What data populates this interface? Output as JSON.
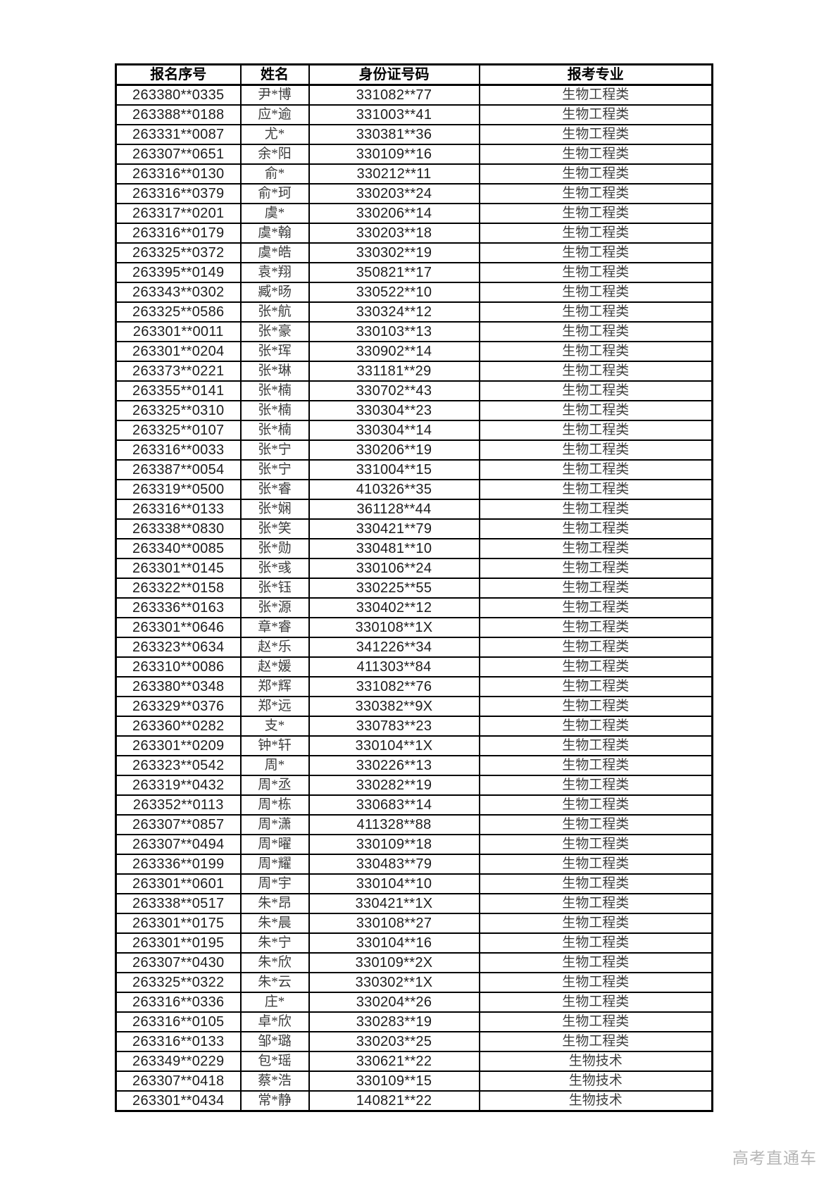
{
  "watermark": {
    "text": "高考直通车",
    "color": "#b6b6b6"
  },
  "table": {
    "headers": [
      "报名序号",
      "姓名",
      "身份证号码",
      "报考专业"
    ],
    "rows": [
      [
        "263380**0335",
        "尹*博",
        "331082**77",
        "生物工程类"
      ],
      [
        "263388**0188",
        "应*逾",
        "331003**41",
        "生物工程类"
      ],
      [
        "263331**0087",
        "尤*",
        "330381**36",
        "生物工程类"
      ],
      [
        "263307**0651",
        "余*阳",
        "330109**16",
        "生物工程类"
      ],
      [
        "263316**0130",
        "俞*",
        "330212**11",
        "生物工程类"
      ],
      [
        "263316**0379",
        "俞*珂",
        "330203**24",
        "生物工程类"
      ],
      [
        "263317**0201",
        "虞*",
        "330206**14",
        "生物工程类"
      ],
      [
        "263316**0179",
        "虞*翰",
        "330203**18",
        "生物工程类"
      ],
      [
        "263325**0372",
        "虞*皓",
        "330302**19",
        "生物工程类"
      ],
      [
        "263395**0149",
        "袁*翔",
        "350821**17",
        "生物工程类"
      ],
      [
        "263343**0302",
        "臧*旸",
        "330522**10",
        "生物工程类"
      ],
      [
        "263325**0586",
        "张*航",
        "330324**12",
        "生物工程类"
      ],
      [
        "263301**0011",
        "张*豪",
        "330103**13",
        "生物工程类"
      ],
      [
        "263301**0204",
        "张*珲",
        "330902**14",
        "生物工程类"
      ],
      [
        "263373**0221",
        "张*琳",
        "331181**29",
        "生物工程类"
      ],
      [
        "263355**0141",
        "张*楠",
        "330702**43",
        "生物工程类"
      ],
      [
        "263325**0310",
        "张*楠",
        "330304**23",
        "生物工程类"
      ],
      [
        "263325**0107",
        "张*楠",
        "330304**14",
        "生物工程类"
      ],
      [
        "263316**0033",
        "张*宁",
        "330206**19",
        "生物工程类"
      ],
      [
        "263387**0054",
        "张*宁",
        "331004**15",
        "生物工程类"
      ],
      [
        "263319**0500",
        "张*睿",
        "410326**35",
        "生物工程类"
      ],
      [
        "263316**0133",
        "张*娴",
        "361128**44",
        "生物工程类"
      ],
      [
        "263338**0830",
        "张*笑",
        "330421**79",
        "生物工程类"
      ],
      [
        "263340**0085",
        "张*勋",
        "330481**10",
        "生物工程类"
      ],
      [
        "263301**0145",
        "张*彧",
        "330106**24",
        "生物工程类"
      ],
      [
        "263322**0158",
        "张*钰",
        "330225**55",
        "生物工程类"
      ],
      [
        "263336**0163",
        "张*源",
        "330402**12",
        "生物工程类"
      ],
      [
        "263301**0646",
        "章*睿",
        "330108**1X",
        "生物工程类"
      ],
      [
        "263323**0634",
        "赵*乐",
        "341226**34",
        "生物工程类"
      ],
      [
        "263310**0086",
        "赵*媛",
        "411303**84",
        "生物工程类"
      ],
      [
        "263380**0348",
        "郑*辉",
        "331082**76",
        "生物工程类"
      ],
      [
        "263329**0376",
        "郑*远",
        "330382**9X",
        "生物工程类"
      ],
      [
        "263360**0282",
        "支*",
        "330783**23",
        "生物工程类"
      ],
      [
        "263301**0209",
        "钟*轩",
        "330104**1X",
        "生物工程类"
      ],
      [
        "263323**0542",
        "周*",
        "330226**13",
        "生物工程类"
      ],
      [
        "263319**0432",
        "周*丞",
        "330282**19",
        "生物工程类"
      ],
      [
        "263352**0113",
        "周*栋",
        "330683**14",
        "生物工程类"
      ],
      [
        "263307**0857",
        "周*潇",
        "411328**88",
        "生物工程类"
      ],
      [
        "263307**0494",
        "周*曜",
        "330109**18",
        "生物工程类"
      ],
      [
        "263336**0199",
        "周*耀",
        "330483**79",
        "生物工程类"
      ],
      [
        "263301**0601",
        "周*宇",
        "330104**10",
        "生物工程类"
      ],
      [
        "263338**0517",
        "朱*昂",
        "330421**1X",
        "生物工程类"
      ],
      [
        "263301**0175",
        "朱*晨",
        "330108**27",
        "生物工程类"
      ],
      [
        "263301**0195",
        "朱*宁",
        "330104**16",
        "生物工程类"
      ],
      [
        "263307**0430",
        "朱*欣",
        "330109**2X",
        "生物工程类"
      ],
      [
        "263325**0322",
        "朱*云",
        "330302**1X",
        "生物工程类"
      ],
      [
        "263316**0336",
        "庄*",
        "330204**26",
        "生物工程类"
      ],
      [
        "263316**0105",
        "卓*欣",
        "330283**19",
        "生物工程类"
      ],
      [
        "263316**0133",
        "邹*璐",
        "330203**25",
        "生物工程类"
      ],
      [
        "263349**0229",
        "包*瑶",
        "330621**22",
        "生物技术"
      ],
      [
        "263307**0418",
        "蔡*浩",
        "330109**15",
        "生物技术"
      ],
      [
        "263301**0434",
        "常*静",
        "140821**22",
        "生物技术"
      ]
    ]
  }
}
